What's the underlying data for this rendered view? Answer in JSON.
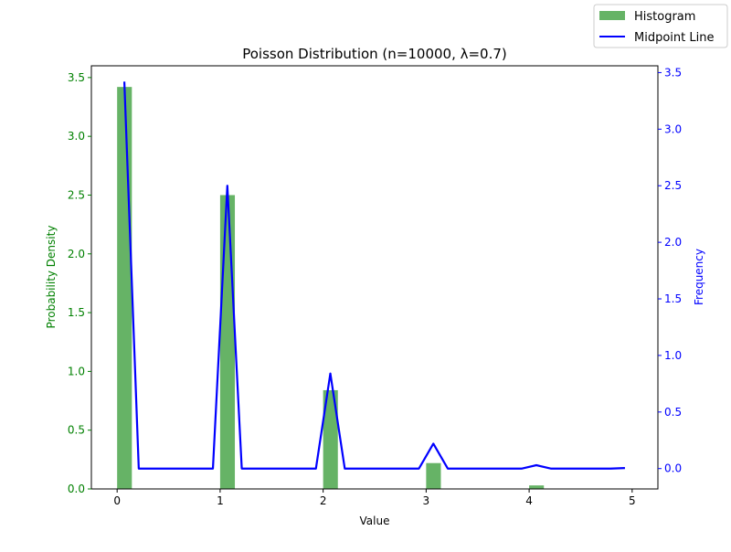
{
  "chart_data": {
    "type": "bar",
    "title": "Poisson Distribution (n=10000, λ=0.7)",
    "xlabel": "Value",
    "ylabel_left": "Probability Density",
    "ylabel_right": "Frequency",
    "xlim": [
      -0.25,
      5.25
    ],
    "ylim_left": [
      0,
      3.6
    ],
    "ylim_right": [
      -0.18,
      3.56
    ],
    "x_ticks": [
      "0",
      "1",
      "2",
      "3",
      "4",
      "5"
    ],
    "y_ticks_left": [
      "0.0",
      "0.5",
      "1.0",
      "1.5",
      "2.0",
      "2.5",
      "3.0",
      "3.5"
    ],
    "y_ticks_right": [
      "0.0",
      "0.5",
      "1.0",
      "1.5",
      "2.0",
      "2.5",
      "3.0",
      "3.5"
    ],
    "legend": [
      "Histogram",
      "Midpoint Line"
    ],
    "legend_position": "top-right",
    "colors": {
      "histogram": "#008000",
      "line": "#0000ff",
      "left_axis": "#008000",
      "right_axis": "#0000ff"
    },
    "histogram": {
      "name": "Histogram",
      "bin_lefts": [
        0.0,
        1.0,
        2.0,
        3.0,
        4.0
      ],
      "bin_width": 0.143,
      "density": [
        3.42,
        2.5,
        0.84,
        0.22,
        0.03
      ]
    },
    "midpoint_line": {
      "name": "Midpoint Line",
      "x": [
        0.07,
        0.21,
        0.36,
        0.5,
        0.64,
        0.79,
        0.93,
        1.07,
        1.21,
        1.36,
        1.5,
        1.64,
        1.79,
        1.93,
        2.07,
        2.21,
        2.36,
        2.5,
        2.64,
        2.79,
        2.93,
        3.07,
        3.21,
        3.36,
        3.5,
        3.64,
        3.79,
        3.93,
        4.07,
        4.21,
        4.36,
        4.5,
        4.64,
        4.79,
        4.93
      ],
      "y": [
        3.42,
        0,
        0,
        0,
        0,
        0,
        0,
        2.5,
        0,
        0,
        0,
        0,
        0,
        0,
        0.84,
        0,
        0,
        0,
        0,
        0,
        0,
        0.22,
        0,
        0,
        0,
        0,
        0,
        0,
        0.03,
        0,
        0,
        0,
        0,
        0,
        0.005
      ]
    }
  }
}
